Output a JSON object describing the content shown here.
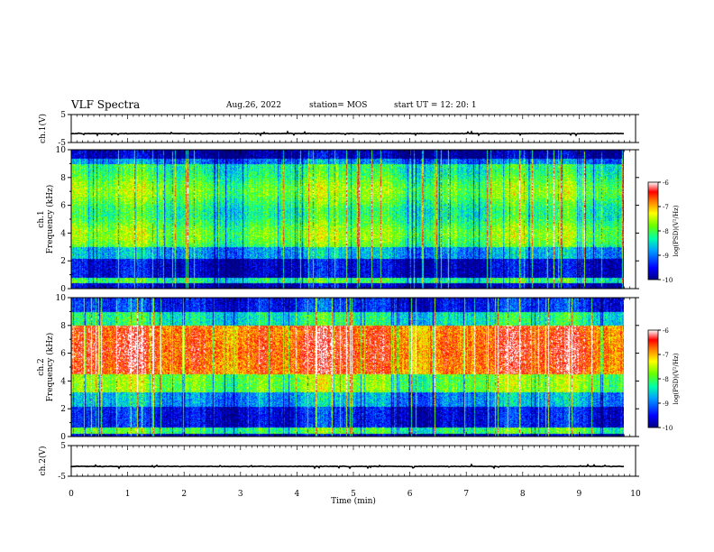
{
  "header": {
    "title": "VLF Spectra",
    "date": "Aug.26, 2022",
    "station": "station= MOS",
    "start": "start  UT  =    12: 20: 1"
  },
  "chart_data": [
    {
      "type": "line",
      "name": "ch1-waveform",
      "ylabel": "ch.1(V)",
      "ylim": [
        -5,
        5
      ],
      "yticks": [
        "5",
        "-5"
      ],
      "xlim": [
        0,
        10
      ],
      "values_level": -1.8
    },
    {
      "type": "heatmap",
      "name": "ch1-spectrogram",
      "ylabel": "ch.1\nFrequency (kHz)",
      "ylim": [
        0,
        10
      ],
      "yticks": [
        "0",
        "2",
        "4",
        "6",
        "8",
        "10"
      ],
      "xlim": [
        0,
        10
      ],
      "colorbar": {
        "label": "log(PSD)(V²/Hz)",
        "range": [
          -10,
          -6
        ],
        "ticks": [
          "-6",
          "-7",
          "-8",
          "-9",
          "-10"
        ]
      }
    },
    {
      "type": "heatmap",
      "name": "ch2-spectrogram",
      "ylabel": "ch.2\nFrequency (kHz)",
      "ylim": [
        0,
        10
      ],
      "yticks": [
        "0",
        "2",
        "4",
        "6",
        "8",
        "10"
      ],
      "xlim": [
        0,
        10
      ],
      "colorbar": {
        "label": "log(PSD)(V²/Hz)",
        "range": [
          -10,
          -6
        ],
        "ticks": [
          "-6",
          "-7",
          "-8",
          "-9",
          "-10"
        ]
      }
    },
    {
      "type": "line",
      "name": "ch2-waveform",
      "ylabel": "ch.2(V)",
      "ylim": [
        -5,
        5
      ],
      "yticks": [
        "5",
        "-5"
      ],
      "xlim": [
        0,
        10
      ],
      "values_level": -1.8
    }
  ],
  "xaxis": {
    "label": "Time (min)",
    "ticks": [
      "0",
      "1",
      "2",
      "3",
      "4",
      "5",
      "6",
      "7",
      "8",
      "9",
      "10"
    ]
  },
  "colors": {
    "low": "#00007f",
    "mid": "#00ff00",
    "high": "#ff0000",
    "top": "#ffffff"
  }
}
